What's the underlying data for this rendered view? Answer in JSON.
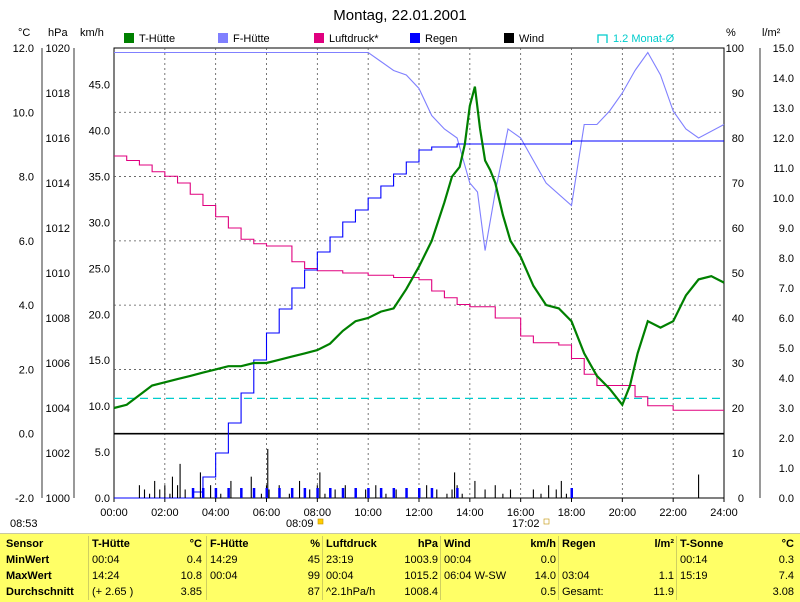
{
  "title": "Montag, 22.01.2001",
  "unit_labels": {
    "left1": "°C",
    "left2": "hPa",
    "left3": "km/h",
    "right1": "%",
    "right2": "l/m²"
  },
  "legend": [
    {
      "label": "T-Hütte",
      "color": "#008000"
    },
    {
      "label": "F-Hütte",
      "color": "#8080ff"
    },
    {
      "label": "Luftdruck*",
      "color": "#e0007f"
    },
    {
      "label": "Regen",
      "color": "#0000ff"
    },
    {
      "label": "Wind",
      "color": "#000000"
    },
    {
      "label": "1.2 Monat-Ø",
      "color": "#00cccc"
    }
  ],
  "markers": {
    "start_time": "08:53",
    "marker1": "08:09",
    "marker2": "17:02"
  },
  "colors": {
    "temp": "#008000",
    "hum": "#8080ff",
    "press": "#e0007f",
    "rain": "#0000ff",
    "wind": "#000000",
    "avg": "#00cccc",
    "table_bg": "#ffff66"
  },
  "chart_data": {
    "type": "line",
    "title": "Montag, 22.01.2001",
    "x_ticks": [
      "00:00",
      "02:00",
      "04:00",
      "06:00",
      "08:00",
      "10:00",
      "12:00",
      "14:00",
      "16:00",
      "18:00",
      "20:00",
      "22:00",
      "24:00"
    ],
    "axes": {
      "celsius": {
        "ticks": [
          "12.0",
          "10.0",
          "8.0",
          "6.0",
          "4.0",
          "2.0",
          "0.0",
          "-2.0"
        ],
        "range": [
          -2,
          12
        ]
      },
      "hpa": {
        "ticks": [
          "1020",
          "1018",
          "1016",
          "1014",
          "1012",
          "1010",
          "1008",
          "1006",
          "1004",
          "1002",
          "1000"
        ],
        "range": [
          1000,
          1020
        ]
      },
      "kmh": {
        "ticks": [
          "45.0",
          "40.0",
          "35.0",
          "30.0",
          "25.0",
          "20.0",
          "15.0",
          "10.0",
          "5.0",
          "0.0"
        ],
        "range": [
          0,
          49
        ]
      },
      "percent": {
        "ticks": [
          "100",
          "90",
          "80",
          "70",
          "60",
          "50",
          "40",
          "30",
          "20",
          "10",
          "0"
        ],
        "range": [
          0,
          100
        ]
      },
      "lm2": {
        "ticks": [
          "15.0",
          "14.0",
          "13.0",
          "12.0",
          "11.0",
          "10.0",
          "9.0",
          "8.0",
          "7.0",
          "6.0",
          "5.0",
          "4.0",
          "3.0",
          "2.0",
          "1.0",
          "0.0"
        ],
        "range": [
          0,
          15
        ]
      }
    },
    "grid": true,
    "series": [
      {
        "name": "T-Hütte",
        "unit": "°C",
        "x": [
          0,
          0.5,
          1,
          1.5,
          2,
          2.5,
          3,
          3.5,
          4,
          4.5,
          5,
          5.5,
          6,
          6.5,
          7,
          7.5,
          8,
          8.5,
          9,
          9.5,
          10,
          10.5,
          11,
          11.5,
          12,
          12.5,
          13,
          13.3,
          13.6,
          13.8,
          14.0,
          14.2,
          14.4,
          14.6,
          14.8,
          15,
          15.3,
          15.6,
          16,
          16.5,
          17,
          17.5,
          18,
          18.5,
          19,
          19.5,
          20,
          20.3,
          20.6,
          21,
          21.5,
          22,
          22.5,
          23,
          23.5,
          24
        ],
        "y": [
          0.8,
          0.9,
          1.2,
          1.5,
          1.6,
          1.7,
          1.8,
          1.9,
          2.0,
          2.1,
          2.1,
          2.2,
          2.2,
          2.3,
          2.4,
          2.5,
          2.6,
          2.8,
          3.2,
          3.5,
          3.6,
          3.8,
          3.9,
          4.5,
          5.2,
          6.0,
          7.2,
          8.0,
          8.3,
          9.0,
          10.2,
          10.8,
          9.5,
          8.5,
          8.2,
          7.8,
          6.8,
          6.0,
          5.5,
          4.6,
          4.0,
          3.9,
          3.5,
          2.5,
          1.8,
          1.4,
          0.9,
          1.5,
          2.5,
          3.5,
          3.3,
          3.5,
          4.3,
          4.8,
          4.9,
          4.7
        ]
      },
      {
        "name": "F-Hütte",
        "unit": "%",
        "x": [
          0,
          1,
          2,
          3,
          4,
          5,
          6,
          7,
          8,
          9,
          10,
          10.5,
          11,
          11.5,
          12,
          12.5,
          13,
          13.5,
          14,
          14.3,
          14.6,
          15,
          15.5,
          16,
          17,
          18,
          18.5,
          19,
          19.5,
          20,
          20.5,
          21,
          21.5,
          22,
          22.5,
          23,
          24
        ],
        "y": [
          99,
          99,
          99,
          99,
          99,
          99,
          99,
          99,
          99,
          99,
          99,
          97,
          95,
          94,
          91,
          85,
          82,
          80,
          70,
          68,
          55,
          68,
          82,
          80,
          70,
          65,
          83,
          83,
          86,
          90,
          95,
          99,
          94,
          86,
          82,
          80,
          83
        ]
      },
      {
        "name": "Luftdruck*",
        "unit": "hPa",
        "x": [
          0,
          0.5,
          1,
          1.5,
          2,
          2.5,
          3,
          3.5,
          4,
          4.5,
          5,
          5.5,
          6,
          6.5,
          7,
          7.5,
          8,
          9,
          10,
          11,
          12,
          12.5,
          13,
          13.5,
          14,
          15,
          16,
          16.5,
          17,
          17.5,
          18,
          18.5,
          19,
          19.5,
          20,
          20.5,
          21,
          22,
          23,
          24
        ],
        "y": [
          1015.2,
          1015.0,
          1014.8,
          1014.5,
          1014.3,
          1014.0,
          1013.5,
          1013.0,
          1012.5,
          1012.0,
          1011.5,
          1011.3,
          1011.2,
          1011.2,
          1010.5,
          1010.2,
          1010.1,
          1010.0,
          1009.9,
          1009.8,
          1009.7,
          1009.2,
          1008.9,
          1008.6,
          1008.5,
          1008.0,
          1007.2,
          1006.9,
          1006.9,
          1006.8,
          1006.2,
          1005.5,
          1005.0,
          1005.0,
          1005.0,
          1004.5,
          1004.1,
          1003.9,
          1003.9,
          1003.9
        ]
      },
      {
        "name": "Regen",
        "unit": "l/m²",
        "x": [
          0,
          3.0,
          3.1,
          3.5,
          4,
          4.5,
          5,
          5.5,
          6,
          6.5,
          7,
          7.5,
          8,
          8.5,
          9,
          9.5,
          10,
          10.5,
          11,
          11.5,
          12,
          12.5,
          13,
          13.5,
          14,
          14.5,
          15,
          16,
          17,
          18,
          19,
          20,
          21,
          22,
          23,
          24
        ],
        "y": [
          0,
          0,
          0.2,
          0.7,
          1.5,
          2.5,
          3.5,
          4.6,
          5.5,
          6.3,
          7.0,
          7.6,
          8.2,
          8.7,
          9.2,
          9.6,
          10.0,
          10.4,
          10.8,
          11.2,
          11.6,
          11.7,
          11.7,
          11.8,
          11.8,
          11.8,
          11.8,
          11.8,
          11.8,
          11.9,
          11.9,
          11.9,
          11.9,
          11.9,
          11.9,
          11.9
        ]
      },
      {
        "name": "Wind",
        "unit": "km/h",
        "x": [
          0.9,
          1,
          1.2,
          1.4,
          1.6,
          1.8,
          2,
          2.2,
          2.3,
          2.5,
          2.6,
          2.8,
          3,
          3.4,
          3.8,
          4.2,
          4.6,
          5,
          5.4,
          5.8,
          6,
          6.05,
          6.1,
          6.2,
          6.5,
          6.9,
          7.3,
          7.7,
          8,
          8.1,
          8.3,
          8.7,
          9.1,
          9.5,
          9.9,
          10.3,
          10.7,
          11.1,
          11.5,
          11.9,
          12.3,
          12.7,
          13.1,
          13.3,
          13.4,
          13.5,
          13.7,
          14.2,
          14.6,
          15,
          15.3,
          15.6,
          16,
          16.5,
          16.8,
          17.1,
          17.4,
          17.6,
          17.8,
          18,
          22.9,
          23,
          23.1
        ],
        "y": [
          0,
          3,
          2,
          1,
          4,
          2,
          3,
          1,
          5,
          3,
          8,
          2,
          0,
          6,
          3,
          1,
          4,
          2,
          5,
          1,
          3,
          11.5,
          2,
          0,
          3,
          1,
          4,
          2,
          3,
          6,
          1,
          2,
          3,
          0,
          2,
          3,
          1,
          2,
          1,
          0,
          3,
          2,
          1,
          2,
          6,
          3,
          1,
          4,
          2,
          3,
          1,
          2,
          0,
          2,
          1,
          3,
          2,
          4,
          1,
          0,
          0,
          5.5,
          0
        ]
      },
      {
        "name": "1.2 Monat-Ø",
        "unit": "°C",
        "x": [
          0,
          24
        ],
        "y": [
          1.1,
          1.1
        ]
      }
    ],
    "wind_peak_labels": []
  },
  "table": {
    "row_labels": [
      "Sensor",
      "MinWert",
      "MaxWert",
      "Durchschnitt"
    ],
    "blocks": [
      {
        "name": "T-Hütte",
        "unit": "°C",
        "rows": [
          [
            "00:04",
            "0.4"
          ],
          [
            "14:24",
            "10.8"
          ],
          [
            "(+ 2.65 )",
            "3.85"
          ]
        ]
      },
      {
        "name": "F-Hütte",
        "unit": "%",
        "rows": [
          [
            "14:29",
            "45"
          ],
          [
            "00:04",
            "99"
          ],
          [
            "",
            "87"
          ]
        ]
      },
      {
        "name": "Luftdruck",
        "unit": "hPa",
        "rows": [
          [
            "23:19",
            "1003.9"
          ],
          [
            "00:04",
            "1015.2"
          ],
          [
            "^2.1hPa/h",
            "1008.4"
          ]
        ]
      },
      {
        "name": "Wind",
        "unit": "km/h",
        "rows": [
          [
            "00:04",
            "0.0"
          ],
          [
            "06:04  W-SW",
            "14.0"
          ],
          [
            "",
            "0.5"
          ]
        ]
      },
      {
        "name": "Regen",
        "unit": "l/m²",
        "rows": [
          [
            "",
            ""
          ],
          [
            "03:04",
            "1.1"
          ],
          [
            "Gesamt:",
            "11.9"
          ]
        ]
      },
      {
        "name": "T-Sonne",
        "unit": "°C",
        "rows": [
          [
            "00:14",
            "0.3"
          ],
          [
            "15:19",
            "7.4"
          ],
          [
            "",
            "3.08"
          ]
        ]
      }
    ]
  }
}
